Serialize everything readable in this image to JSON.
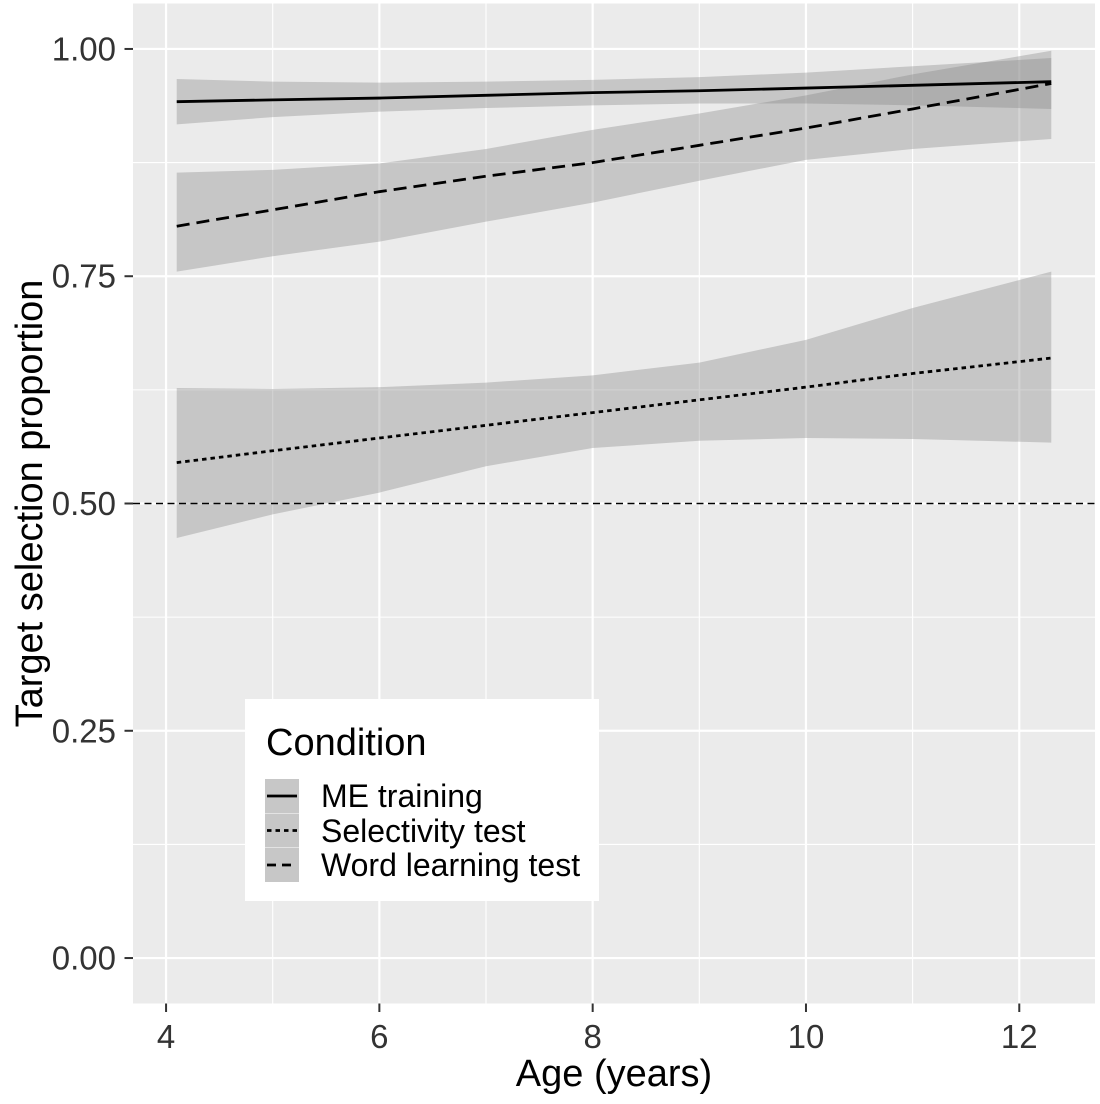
{
  "figure": {
    "x_axis": {
      "title": "Age (years)",
      "ticks": [
        4,
        6,
        8,
        10,
        12
      ],
      "tick_labels": [
        "4",
        "6",
        "8",
        "10",
        "12"
      ],
      "minor_ticks": [
        5,
        7,
        9,
        11
      ],
      "range": [
        3.69,
        12.71
      ]
    },
    "y_axis": {
      "title": "Target selection proportion",
      "ticks": [
        0,
        0.25,
        0.5,
        0.75,
        1
      ],
      "tick_labels": [
        "0.00",
        "0.25",
        "0.50",
        "0.75",
        "1.00"
      ],
      "minor_ticks": [
        0.125,
        0.375,
        0.625,
        0.875
      ],
      "range": [
        -0.05,
        1.05
      ]
    },
    "legend": {
      "title": "Condition",
      "entries": [
        {
          "label": "ME training",
          "linetype": "solid"
        },
        {
          "label": "Selectivity test",
          "linetype": "dotted"
        },
        {
          "label": "Word learning test",
          "linetype": "dashed"
        }
      ]
    },
    "colors": {
      "panel_bg": "#EBEBEB",
      "grid": "#FFFFFF",
      "ribbon_fill": "#808080",
      "line": "#000000",
      "legend_bg": "#FFFFFF",
      "axis_text": "#333333",
      "legend_key_bg": "#C7C7C7"
    }
  },
  "chart_data": {
    "type": "line",
    "title": "",
    "xlabel": "Age (years)",
    "ylabel": "Target selection proportion",
    "xlim": [
      3.69,
      12.71
    ],
    "ylim": [
      -0.05,
      1.05
    ],
    "grid": "on",
    "legend_position": "inside-bottom-left",
    "x": [
      4.1,
      5,
      6,
      7,
      8,
      9,
      10,
      11,
      12.3
    ],
    "series": [
      {
        "name": "ME training",
        "linetype": "solid",
        "values": [
          0.942,
          0.944,
          0.946,
          0.949,
          0.952,
          0.954,
          0.957,
          0.96,
          0.964
        ],
        "ci_upper": [
          0.967,
          0.964,
          0.963,
          0.964,
          0.966,
          0.969,
          0.974,
          0.981,
          0.99
        ],
        "ci_lower": [
          0.917,
          0.925,
          0.931,
          0.935,
          0.938,
          0.94,
          0.94,
          0.938,
          0.934
        ]
      },
      {
        "name": "Selectivity test",
        "linetype": "dotted",
        "values": [
          0.545,
          0.558,
          0.572,
          0.586,
          0.6,
          0.614,
          0.628,
          0.643,
          0.66
        ],
        "ci_upper": [
          0.627,
          0.626,
          0.628,
          0.633,
          0.641,
          0.655,
          0.68,
          0.715,
          0.755
        ],
        "ci_lower": [
          0.462,
          0.488,
          0.512,
          0.541,
          0.561,
          0.569,
          0.572,
          0.571,
          0.567
        ]
      },
      {
        "name": "Word learning test",
        "linetype": "dashed",
        "values": [
          0.805,
          0.823,
          0.843,
          0.86,
          0.875,
          0.894,
          0.913,
          0.934,
          0.962
        ],
        "ci_upper": [
          0.864,
          0.867,
          0.874,
          0.89,
          0.911,
          0.929,
          0.949,
          0.972,
          0.998
        ],
        "ci_lower": [
          0.755,
          0.772,
          0.788,
          0.81,
          0.831,
          0.855,
          0.878,
          0.89,
          0.901
        ]
      }
    ],
    "reference_line": {
      "y": 0.5,
      "style": "dashed"
    }
  }
}
